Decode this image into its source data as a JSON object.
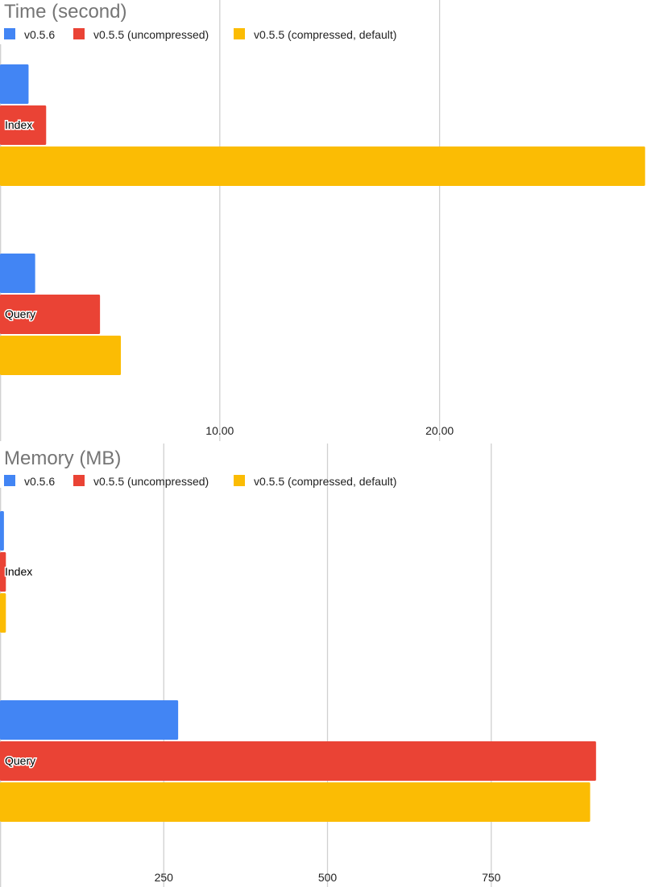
{
  "chart_data": [
    {
      "type": "bar",
      "orientation": "horizontal",
      "title": "Time (second)",
      "categories": [
        "Index",
        "Query"
      ],
      "series": [
        {
          "name": "v0.5.6",
          "color": "#4285f4",
          "values": [
            1.3,
            1.6
          ]
        },
        {
          "name": "v0.5.5 (uncompressed)",
          "color": "#ea4335",
          "values": [
            2.1,
            4.55
          ]
        },
        {
          "name": "v0.5.5 (compressed, default)",
          "color": "#fbbc04",
          "values": [
            29.35,
            5.5
          ]
        }
      ],
      "xlim": [
        0,
        29.8
      ],
      "xticks": [
        10,
        20
      ],
      "xtick_labels": [
        "10.00",
        "20.00"
      ],
      "grid": true,
      "legend": "top-left"
    },
    {
      "type": "bar",
      "orientation": "horizontal",
      "title": "Memory (MB)",
      "categories": [
        "Index",
        "Query"
      ],
      "series": [
        {
          "name": "v0.5.6",
          "color": "#4285f4",
          "values": [
            6,
            272
          ]
        },
        {
          "name": "v0.5.5 (uncompressed)",
          "color": "#ea4335",
          "values": [
            9,
            910
          ]
        },
        {
          "name": "v0.5.5 (compressed, default)",
          "color": "#fbbc04",
          "values": [
            9,
            901
          ]
        }
      ],
      "xlim": [
        0,
        1000
      ],
      "xticks": [
        250,
        500,
        750
      ],
      "xtick_labels": [
        "250",
        "500",
        "750"
      ],
      "grid": true,
      "legend": "top-left"
    }
  ]
}
